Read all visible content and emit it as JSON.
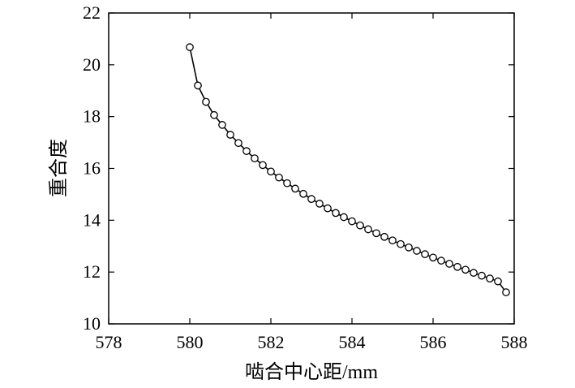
{
  "chart_data": {
    "type": "line",
    "xlabel": "啮合中心距/mm",
    "ylabel": "重合度",
    "xlim": [
      578,
      588
    ],
    "ylim": [
      10,
      22
    ],
    "xticks": [
      "578",
      "580",
      "582",
      "584",
      "586",
      "588"
    ],
    "yticks": [
      "10",
      "12",
      "14",
      "16",
      "18",
      "20",
      "22"
    ],
    "grid": false,
    "legend": "none",
    "series": [
      {
        "marker": "open-circle",
        "line_color": "#000000",
        "points": [
          {
            "x": 580.0,
            "y": 20.68
          },
          {
            "x": 580.2,
            "y": 19.2
          },
          {
            "x": 580.4,
            "y": 18.57
          },
          {
            "x": 580.6,
            "y": 18.06
          },
          {
            "x": 580.8,
            "y": 17.68
          },
          {
            "x": 581.0,
            "y": 17.3
          },
          {
            "x": 581.2,
            "y": 16.98
          },
          {
            "x": 581.4,
            "y": 16.67
          },
          {
            "x": 581.6,
            "y": 16.39
          },
          {
            "x": 581.8,
            "y": 16.13
          },
          {
            "x": 582.0,
            "y": 15.88
          },
          {
            "x": 582.2,
            "y": 15.65
          },
          {
            "x": 582.4,
            "y": 15.43
          },
          {
            "x": 582.6,
            "y": 15.22
          },
          {
            "x": 582.8,
            "y": 15.02
          },
          {
            "x": 583.0,
            "y": 14.82
          },
          {
            "x": 583.2,
            "y": 14.64
          },
          {
            "x": 583.4,
            "y": 14.46
          },
          {
            "x": 583.6,
            "y": 14.28
          },
          {
            "x": 583.8,
            "y": 14.12
          },
          {
            "x": 584.0,
            "y": 13.96
          },
          {
            "x": 584.2,
            "y": 13.8
          },
          {
            "x": 584.4,
            "y": 13.65
          },
          {
            "x": 584.6,
            "y": 13.5
          },
          {
            "x": 584.8,
            "y": 13.36
          },
          {
            "x": 585.0,
            "y": 13.22
          },
          {
            "x": 585.2,
            "y": 13.08
          },
          {
            "x": 585.4,
            "y": 12.95
          },
          {
            "x": 585.6,
            "y": 12.82
          },
          {
            "x": 585.8,
            "y": 12.69
          },
          {
            "x": 586.0,
            "y": 12.56
          },
          {
            "x": 586.2,
            "y": 12.44
          },
          {
            "x": 586.4,
            "y": 12.32
          },
          {
            "x": 586.6,
            "y": 12.2
          },
          {
            "x": 586.8,
            "y": 12.09
          },
          {
            "x": 587.0,
            "y": 11.97
          },
          {
            "x": 587.2,
            "y": 11.86
          },
          {
            "x": 587.4,
            "y": 11.75
          },
          {
            "x": 587.6,
            "y": 11.64
          },
          {
            "x": 587.8,
            "y": 11.22
          }
        ]
      }
    ]
  }
}
